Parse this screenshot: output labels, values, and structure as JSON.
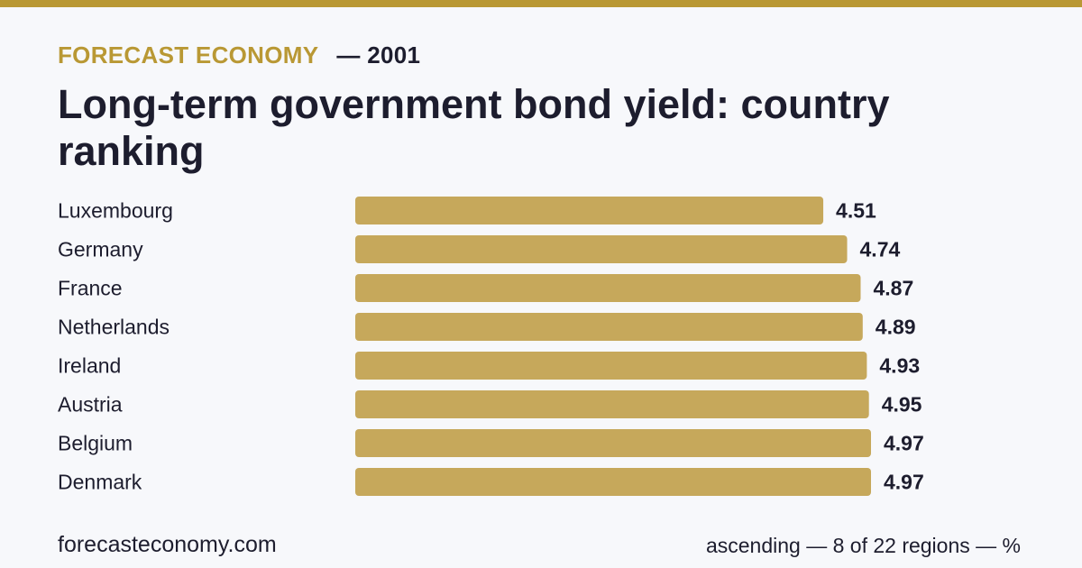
{
  "header": {
    "brand": "FORECAST ECONOMY",
    "year": "— 2001"
  },
  "footer": {
    "site": "forecasteconomy.com",
    "note": "ascending — 8 of 22 regions — %"
  },
  "colors": {
    "accent": "#b99834",
    "bar": "#c6a85b",
    "text": "#1d1d2e",
    "background": "#f7f8fb"
  },
  "chart_data": {
    "type": "bar",
    "orientation": "horizontal",
    "title": "Long-term government bond yield: country ranking",
    "categories": [
      "Luxembourg",
      "Germany",
      "France",
      "Netherlands",
      "Ireland",
      "Austria",
      "Belgium",
      "Denmark"
    ],
    "values": [
      4.51,
      4.74,
      4.87,
      4.89,
      4.93,
      4.95,
      4.97,
      4.97
    ],
    "value_labels": [
      "4.51",
      "4.74",
      "4.87",
      "4.89",
      "4.93",
      "4.95",
      "4.97",
      "4.97"
    ],
    "xlim": [
      0,
      4.97
    ],
    "grid": false,
    "legend": "none"
  }
}
